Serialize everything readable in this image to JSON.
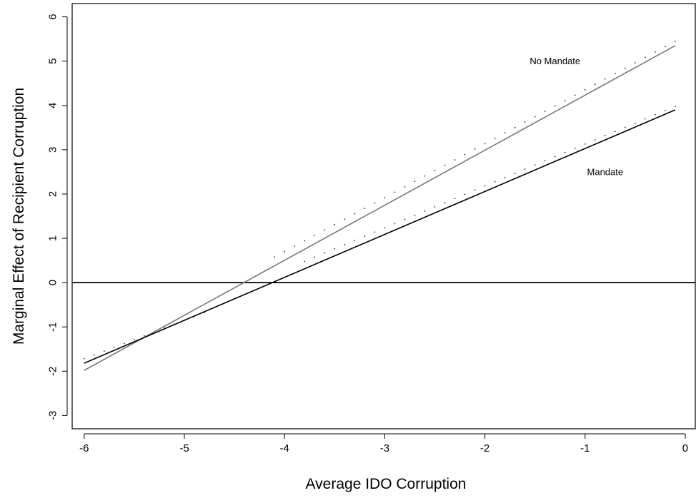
{
  "chart_data": {
    "type": "line",
    "xlabel": "Average IDO Corruption",
    "ylabel": "Marginal Effect of Recipient Corruption",
    "xlim": [
      -6.12,
      0.1
    ],
    "ylim": [
      -3.3,
      6.3
    ],
    "xticks": [
      -6,
      -5,
      -4,
      -3,
      -2,
      -1,
      0
    ],
    "yticks": [
      -3,
      -2,
      -1,
      0,
      1,
      2,
      3,
      4,
      5,
      6
    ],
    "grid": false,
    "legend": "none",
    "reference_line": {
      "y": 0
    },
    "series": [
      {
        "name": "No Mandate",
        "line_color": "#777777",
        "x": [
          -6.0,
          -0.1
        ],
        "y": [
          -1.98,
          5.35
        ],
        "upper_bound": {
          "x_start": -4.1,
          "x_end": -0.1,
          "y_start": 0.58,
          "y_end": 5.45
        }
      },
      {
        "name": "Mandate",
        "line_color": "#000000",
        "x": [
          -6.0,
          -0.1
        ],
        "y": [
          -1.82,
          3.9
        ],
        "upper_bound": {
          "x_start": -3.8,
          "x_end": -0.1,
          "y_start": 0.48,
          "y_end": 3.98
        },
        "lower_bound": {
          "x_start": -6.0,
          "x_end": -4.8,
          "y_start": -1.72,
          "y_end": -0.68
        }
      }
    ],
    "annotations": [
      {
        "text": "No Mandate",
        "x": -1.3,
        "y": 5.0
      },
      {
        "text": "Mandate",
        "x": -0.8,
        "y": 2.5
      }
    ]
  }
}
